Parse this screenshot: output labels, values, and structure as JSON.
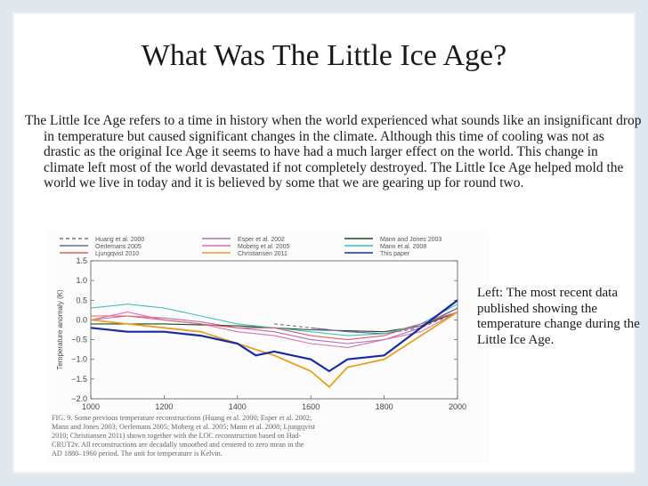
{
  "slide": {
    "title": "What Was The Little Ice Age?",
    "body": "The Little Ice Age refers to a time in history when the world experienced what sounds like an insignificant drop in temperature but caused significant changes in the climate. Although this time of cooling was not as drastic as the original Ice Age it seems to have had a much larger effect on the world. This change in climate left most of the world devastated if not completely destroyed. The Little Ice Age helped mold the world we live in today and it is believed by some that we are gearing up for round two.",
    "caption": "Left: The most recent data published showing the temperature change during the Little Ice Age."
  },
  "figure": {
    "ylabel": "Temperature anomaly (K)",
    "yticks": [
      "1.5",
      "1.0",
      "0.5",
      "0.0",
      "−0.5",
      "−1.0",
      "−1.5",
      "−2.0"
    ],
    "xticks": [
      "1000",
      "1200",
      "1400",
      "1600",
      "1800",
      "2000"
    ],
    "legend": [
      {
        "label": "Huang et al. 2000",
        "color": "#777777",
        "dash": true
      },
      {
        "label": "Oerlemans 2005",
        "color": "#6a6aa8",
        "dash": false
      },
      {
        "label": "Ljungqvist 2010",
        "color": "#e06060",
        "dash": false
      },
      {
        "label": "Esper et al. 2002",
        "color": "#b070c0",
        "dash": false
      },
      {
        "label": "Moberg et al. 2005",
        "color": "#e070b0",
        "dash": false
      },
      {
        "label": "Christiansen 2011",
        "color": "#e8a020",
        "dash": false
      },
      {
        "label": "Mann and Jones 2003",
        "color": "#224422",
        "dash": false
      },
      {
        "label": "Mann et al. 2008",
        "color": "#40c0c0",
        "dash": false
      },
      {
        "label": "This paper",
        "color": "#1a2aa0",
        "dash": false
      }
    ],
    "caption_lines": [
      "FIG. 9.   Some previous temperature reconstructions (Huang et al. 2000; Esper et al. 2002;",
      "Mann and Jones 2003; Oerlemans 2005; Moberg et al. 2005; Mann et al. 2008; Ljungqvist",
      "2010; Christiansen 2011) shown together with the LOC reconstruction based on Had-",
      "CRUT2v.  All reconstructions are decadally smoothed and centered to zero mean in the",
      "AD 1880–1960 period.  The unit for temperature is Kelvin."
    ]
  },
  "chart_data": {
    "type": "line",
    "title": "",
    "xlabel": "",
    "ylabel": "Temperature anomaly (K)",
    "xlim": [
      1000,
      2000
    ],
    "ylim": [
      -2.0,
      1.5
    ],
    "legend_position": "top",
    "series": [
      {
        "name": "Huang et al. 2000",
        "x": [
          1500,
          1600,
          1700,
          1800,
          1900,
          2000
        ],
        "y": [
          -0.1,
          -0.2,
          -0.3,
          -0.35,
          -0.2,
          0.2
        ]
      },
      {
        "name": "Esper et al. 2002",
        "x": [
          1000,
          1100,
          1200,
          1300,
          1400,
          1500,
          1600,
          1700,
          1800,
          1900,
          2000
        ],
        "y": [
          0.0,
          0.1,
          0.05,
          -0.05,
          -0.2,
          -0.3,
          -0.5,
          -0.6,
          -0.5,
          -0.2,
          0.3
        ]
      },
      {
        "name": "Mann and Jones 2003",
        "x": [
          1000,
          1200,
          1400,
          1600,
          1800,
          1900,
          2000
        ],
        "y": [
          -0.1,
          -0.1,
          -0.15,
          -0.25,
          -0.3,
          -0.15,
          0.2
        ]
      },
      {
        "name": "Oerlemans 2005",
        "x": [
          1600,
          1700,
          1800,
          1900,
          2000
        ],
        "y": [
          -0.2,
          -0.3,
          -0.35,
          -0.15,
          0.3
        ]
      },
      {
        "name": "Moberg et al. 2005",
        "x": [
          1000,
          1100,
          1200,
          1300,
          1400,
          1500,
          1600,
          1700,
          1800,
          1900,
          2000
        ],
        "y": [
          0.0,
          0.2,
          0.0,
          -0.1,
          -0.3,
          -0.4,
          -0.6,
          -0.7,
          -0.5,
          -0.3,
          0.2
        ]
      },
      {
        "name": "Mann et al. 2008",
        "x": [
          1000,
          1100,
          1200,
          1300,
          1400,
          1500,
          1600,
          1700,
          1800,
          1900,
          2000
        ],
        "y": [
          0.3,
          0.4,
          0.3,
          0.1,
          -0.1,
          -0.2,
          -0.3,
          -0.4,
          -0.35,
          -0.1,
          0.4
        ]
      },
      {
        "name": "Ljungqvist 2010",
        "x": [
          1000,
          1100,
          1200,
          1300,
          1400,
          1500,
          1600,
          1700,
          1800,
          1900,
          2000
        ],
        "y": [
          0.1,
          0.1,
          0.0,
          -0.1,
          -0.2,
          -0.2,
          -0.4,
          -0.5,
          -0.4,
          -0.1,
          0.2
        ]
      },
      {
        "name": "Christiansen 2011",
        "x": [
          1000,
          1100,
          1200,
          1300,
          1400,
          1500,
          1600,
          1650,
          1700,
          1800,
          1900,
          2000
        ],
        "y": [
          0.0,
          -0.1,
          -0.2,
          -0.3,
          -0.6,
          -0.9,
          -1.3,
          -1.7,
          -1.2,
          -1.0,
          -0.4,
          0.2
        ]
      },
      {
        "name": "This paper",
        "x": [
          1000,
          1100,
          1200,
          1300,
          1400,
          1450,
          1500,
          1600,
          1650,
          1700,
          1800,
          1900,
          2000
        ],
        "y": [
          -0.2,
          -0.3,
          -0.3,
          -0.4,
          -0.6,
          -0.9,
          -0.8,
          -1.0,
          -1.3,
          -1.0,
          -0.9,
          -0.2,
          0.5
        ]
      }
    ]
  }
}
